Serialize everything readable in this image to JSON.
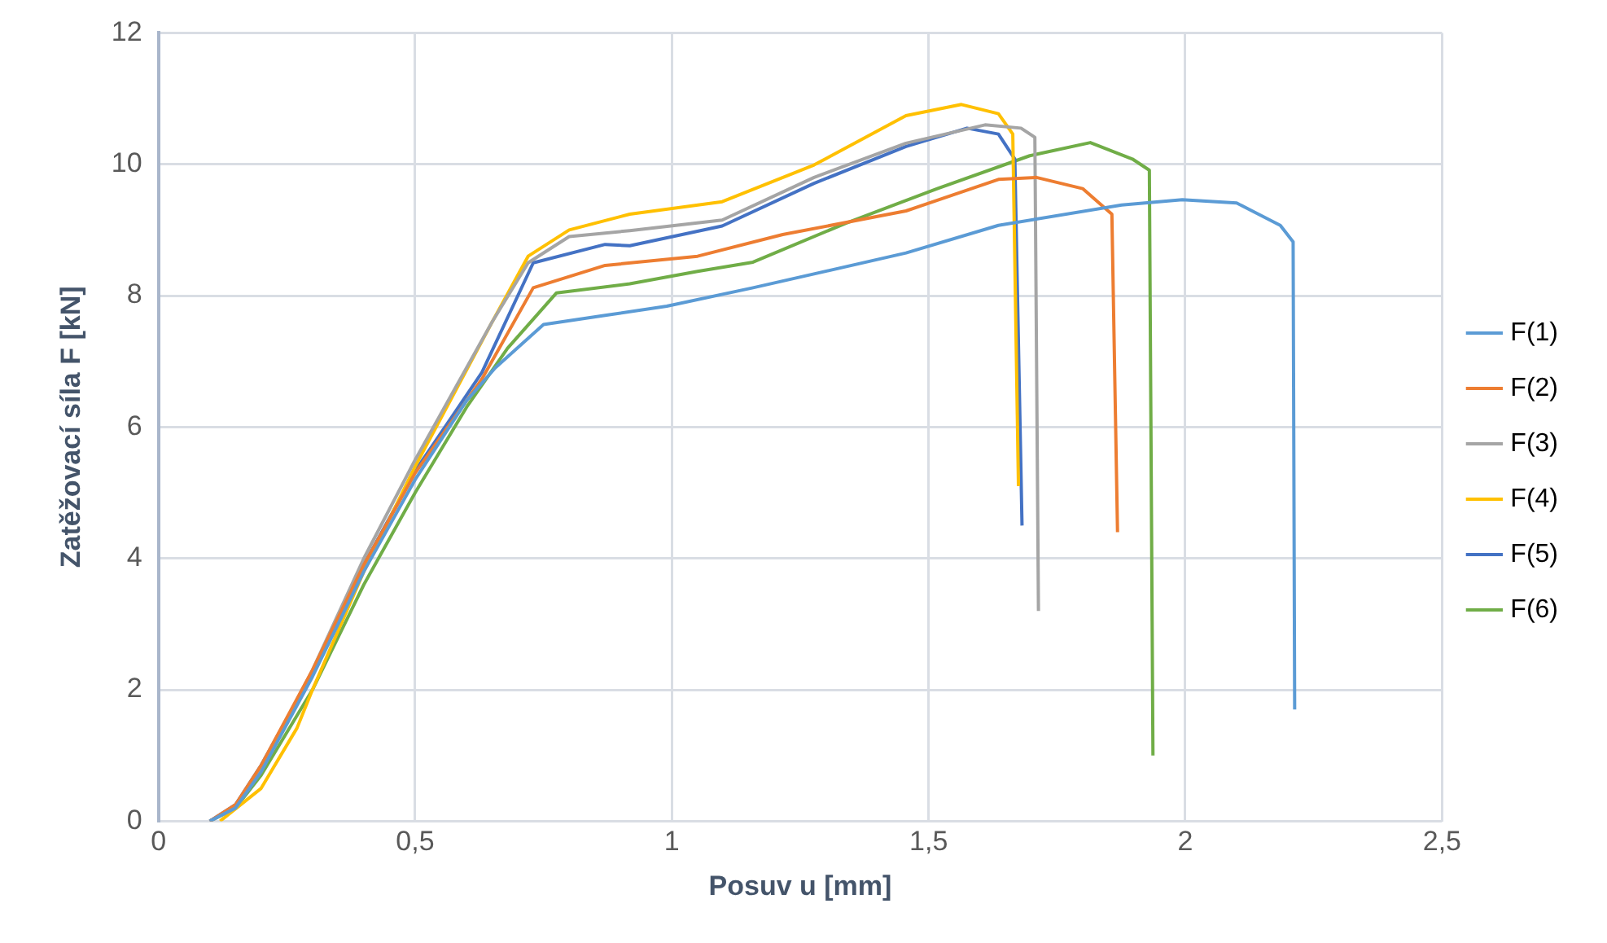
{
  "chart_data": {
    "type": "line",
    "xlabel": "Posuv u [mm]",
    "ylabel": "Zatěžovací síla F [kN]",
    "xlim": [
      0,
      2.5
    ],
    "xticks": [
      0,
      {
        "value": 0.5,
        "label": "0,5"
      },
      1,
      {
        "value": 1.5,
        "label": "1,5"
      },
      2,
      {
        "value": 2.5,
        "label": "2,5"
      }
    ],
    "ylim": [
      0,
      12
    ],
    "yticks": [
      0,
      2,
      4,
      6,
      8,
      10,
      12
    ],
    "grid": true,
    "legend": "right",
    "marker": "none",
    "line_style": "solid",
    "series": [
      {
        "name": "F(1)",
        "color": "#5b9bd5",
        "x": [
          0.1,
          0.15,
          0.2,
          0.3,
          0.4,
          0.5,
          0.6,
          0.656,
          0.75,
          0.87,
          0.99,
          1.158,
          1.456,
          1.636,
          1.876,
          1.994,
          2.1,
          2.185,
          2.21,
          2.213
        ],
        "values": [
          0,
          0.2,
          0.75,
          2.2,
          3.8,
          5.2,
          6.4,
          6.9,
          7.56,
          7.7,
          7.84,
          8.12,
          8.65,
          9.07,
          9.38,
          9.46,
          9.41,
          9.07,
          8.82,
          1.7
        ]
      },
      {
        "name": "F(2)",
        "color": "#ed7d31",
        "x": [
          0.1,
          0.15,
          0.2,
          0.3,
          0.4,
          0.5,
          0.63,
          0.73,
          0.87,
          1.05,
          1.216,
          1.456,
          1.636,
          1.71,
          1.8,
          1.857,
          1.868
        ],
        "values": [
          0,
          0.25,
          0.85,
          2.3,
          3.9,
          5.3,
          6.73,
          8.12,
          8.46,
          8.6,
          8.93,
          9.29,
          9.77,
          9.8,
          9.63,
          9.24,
          4.4
        ]
      },
      {
        "name": "F(3)",
        "color": "#a5a5a5",
        "x": [
          0.1,
          0.15,
          0.2,
          0.3,
          0.4,
          0.5,
          0.65,
          0.72,
          0.8,
          0.918,
          1.098,
          1.277,
          1.456,
          1.61,
          1.68,
          1.707,
          1.714
        ],
        "values": [
          0,
          0.2,
          0.8,
          2.3,
          4.0,
          5.5,
          7.6,
          8.5,
          8.9,
          8.99,
          9.15,
          9.8,
          10.32,
          10.6,
          10.55,
          10.41,
          3.2
        ]
      },
      {
        "name": "F(4)",
        "color": "#ffc000",
        "x": [
          0.12,
          0.2,
          0.27,
          0.3,
          0.4,
          0.5,
          0.65,
          0.72,
          0.8,
          0.918,
          1.098,
          1.277,
          1.456,
          1.564,
          1.636,
          1.664,
          1.675
        ],
        "values": [
          0,
          0.5,
          1.42,
          2.0,
          3.8,
          5.4,
          7.6,
          8.6,
          9.0,
          9.24,
          9.43,
          9.99,
          10.74,
          10.91,
          10.77,
          10.46,
          5.1
        ]
      },
      {
        "name": "F(5)",
        "color": "#4472c4",
        "x": [
          0.1,
          0.15,
          0.2,
          0.308,
          0.4,
          0.5,
          0.63,
          0.73,
          0.87,
          0.918,
          1.098,
          1.277,
          1.456,
          1.575,
          1.636,
          1.668,
          1.682
        ],
        "values": [
          0,
          0.25,
          0.85,
          2.37,
          3.9,
          5.33,
          6.83,
          8.5,
          8.78,
          8.76,
          9.06,
          9.71,
          10.27,
          10.55,
          10.46,
          10.08,
          4.5
        ]
      },
      {
        "name": "F(6)",
        "color": "#70ad47",
        "x": [
          0.1,
          0.15,
          0.2,
          0.3,
          0.4,
          0.5,
          0.6,
          0.68,
          0.775,
          0.918,
          1.05,
          1.158,
          1.338,
          1.517,
          1.697,
          1.815,
          1.897,
          1.93,
          1.937
        ],
        "values": [
          0,
          0.2,
          0.7,
          2.0,
          3.6,
          5.0,
          6.3,
          7.2,
          8.04,
          8.18,
          8.37,
          8.51,
          9.1,
          9.63,
          10.13,
          10.33,
          10.08,
          9.91,
          1.0
        ]
      }
    ]
  }
}
